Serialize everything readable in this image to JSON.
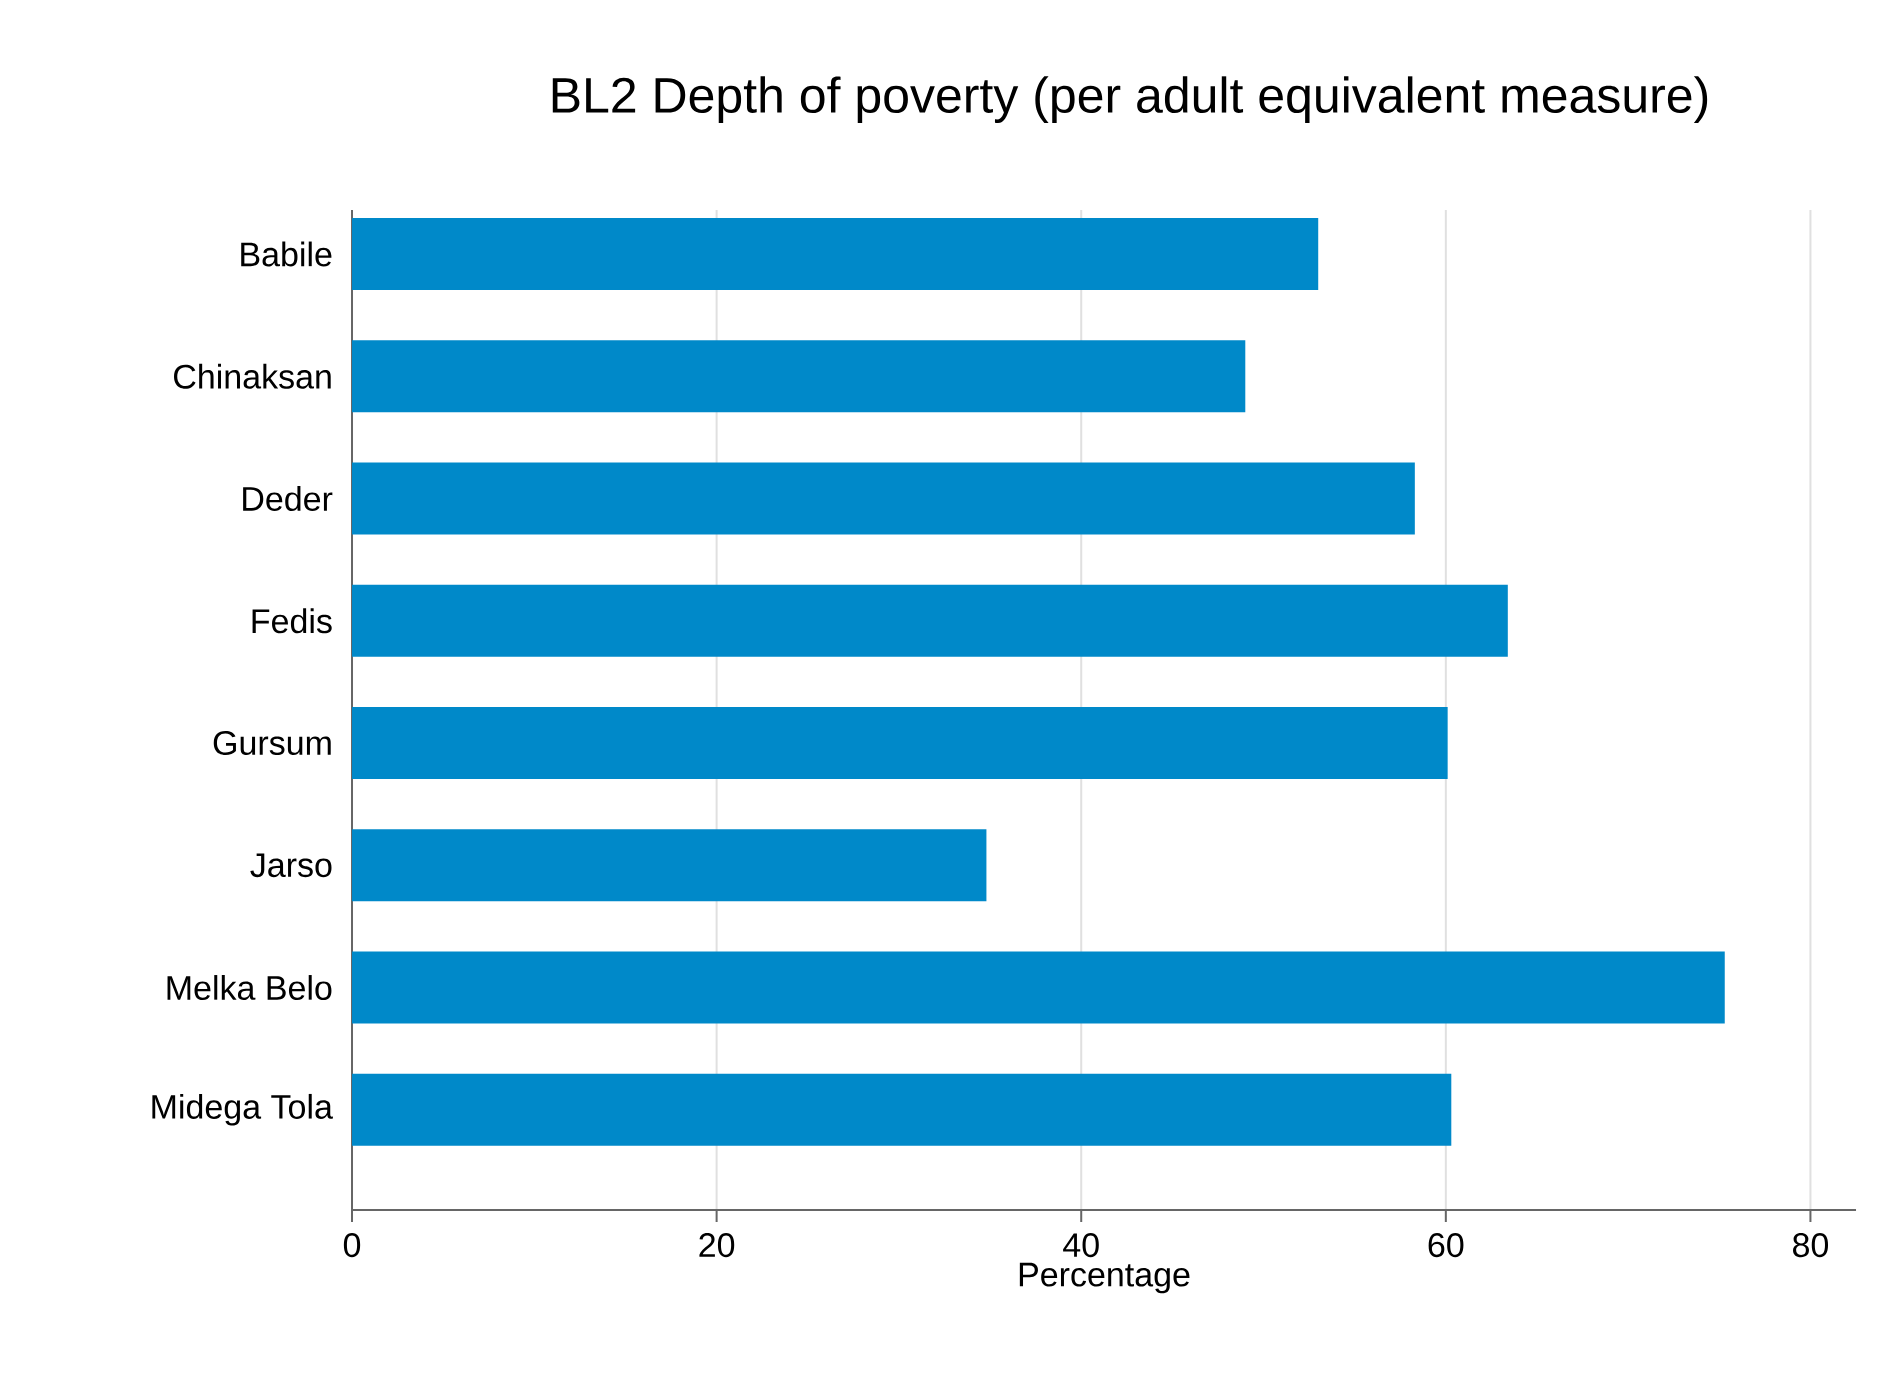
{
  "chart_data": {
    "type": "bar",
    "orientation": "horizontal",
    "title": "BL2 Depth of poverty (per adult equivalent measure)",
    "xlabel": "Percentage",
    "categories": [
      "Babile",
      "Chinaksan",
      "Deder",
      "Fedis",
      "Gursum",
      "Jarso",
      "Melka Belo",
      "Midega Tola"
    ],
    "values": [
      53.0,
      49.0,
      58.3,
      63.4,
      60.1,
      34.8,
      75.3,
      60.3
    ],
    "color": "#0089c9",
    "xlim": [
      0,
      82.5
    ],
    "xticks": [
      0,
      20,
      40,
      60,
      80
    ],
    "grid": "x"
  }
}
